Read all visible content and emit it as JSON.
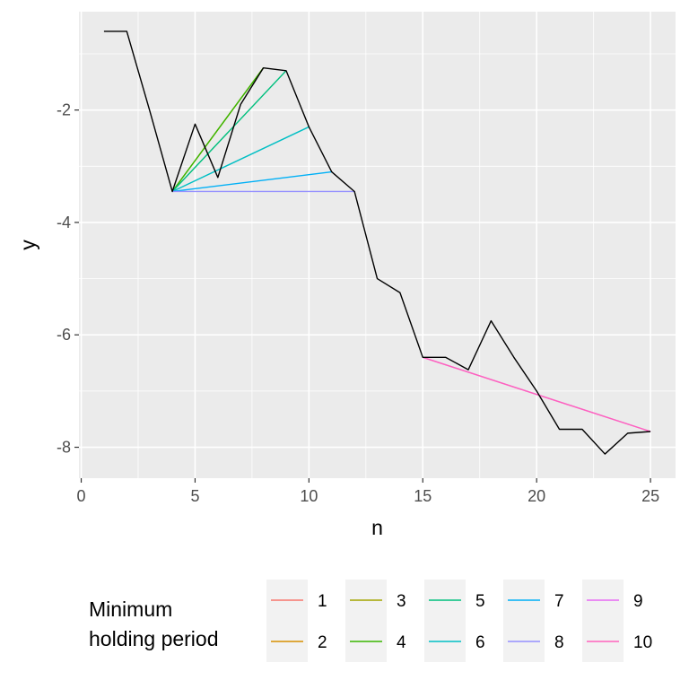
{
  "chart_data": {
    "type": "line",
    "xlabel": "n",
    "ylabel": "y",
    "xlim": [
      -0.1,
      26.1
    ],
    "ylim": [
      -8.55,
      -0.25
    ],
    "x_ticks": [
      0,
      5,
      10,
      15,
      20,
      25
    ],
    "y_ticks": [
      -8,
      -6,
      -4,
      -2
    ],
    "grid": true,
    "background": "#ebebeb",
    "legend": {
      "title": "Minimum\nholding period",
      "position": "bottom",
      "entries": [
        {
          "label": "1",
          "color": "#F8766D"
        },
        {
          "label": "2",
          "color": "#D89000"
        },
        {
          "label": "3",
          "color": "#A3A500"
        },
        {
          "label": "4",
          "color": "#39B600"
        },
        {
          "label": "5",
          "color": "#00BF7D"
        },
        {
          "label": "6",
          "color": "#00BFC4"
        },
        {
          "label": "7",
          "color": "#00B0F6"
        },
        {
          "label": "8",
          "color": "#9590FF"
        },
        {
          "label": "9",
          "color": "#E76BF3"
        },
        {
          "label": "10",
          "color": "#FF62BC"
        }
      ]
    },
    "base_series": {
      "color": "#000000",
      "x": [
        1,
        2,
        3,
        4,
        5,
        6,
        7,
        8,
        9,
        10,
        11,
        12,
        13,
        14,
        15,
        16,
        17,
        18,
        19,
        20,
        21,
        22,
        23,
        24,
        25
      ],
      "y": [
        -0.6,
        -0.6,
        -2.0,
        -3.45,
        -2.25,
        -3.2,
        -1.9,
        -1.25,
        -1.3,
        -2.3,
        -3.1,
        -3.45,
        -5.0,
        -5.25,
        -6.4,
        -6.4,
        -6.62,
        -5.75,
        -6.4,
        -7.0,
        -7.68,
        -7.68,
        -8.12,
        -7.75,
        -7.72
      ]
    },
    "series": [
      {
        "name": "1",
        "color": "#F8766D",
        "segments": []
      },
      {
        "name": "2",
        "color": "#D89000",
        "segments": []
      },
      {
        "name": "3",
        "color": "#A3A500",
        "segments": [
          [
            [
              4,
              -3.45
            ],
            [
              8,
              -1.25
            ]
          ]
        ]
      },
      {
        "name": "4",
        "color": "#39B600",
        "segments": [
          [
            [
              4,
              -3.45
            ],
            [
              8,
              -1.25
            ]
          ]
        ]
      },
      {
        "name": "5",
        "color": "#00BF7D",
        "segments": [
          [
            [
              4,
              -3.45
            ],
            [
              9,
              -1.3
            ]
          ]
        ]
      },
      {
        "name": "6",
        "color": "#00BFC4",
        "segments": [
          [
            [
              4,
              -3.45
            ],
            [
              10,
              -2.3
            ]
          ]
        ]
      },
      {
        "name": "7",
        "color": "#00B0F6",
        "segments": [
          [
            [
              4,
              -3.45
            ],
            [
              11,
              -3.1
            ]
          ]
        ]
      },
      {
        "name": "8",
        "color": "#9590FF",
        "segments": [
          [
            [
              4,
              -3.45
            ],
            [
              12,
              -3.45
            ]
          ]
        ]
      },
      {
        "name": "9",
        "color": "#E76BF3",
        "segments": [
          [
            [
              15,
              -6.4
            ],
            [
              25,
              -7.72
            ]
          ]
        ]
      },
      {
        "name": "10",
        "color": "#FF62BC",
        "segments": [
          [
            [
              15,
              -6.4
            ],
            [
              25,
              -7.72
            ]
          ]
        ]
      }
    ]
  }
}
